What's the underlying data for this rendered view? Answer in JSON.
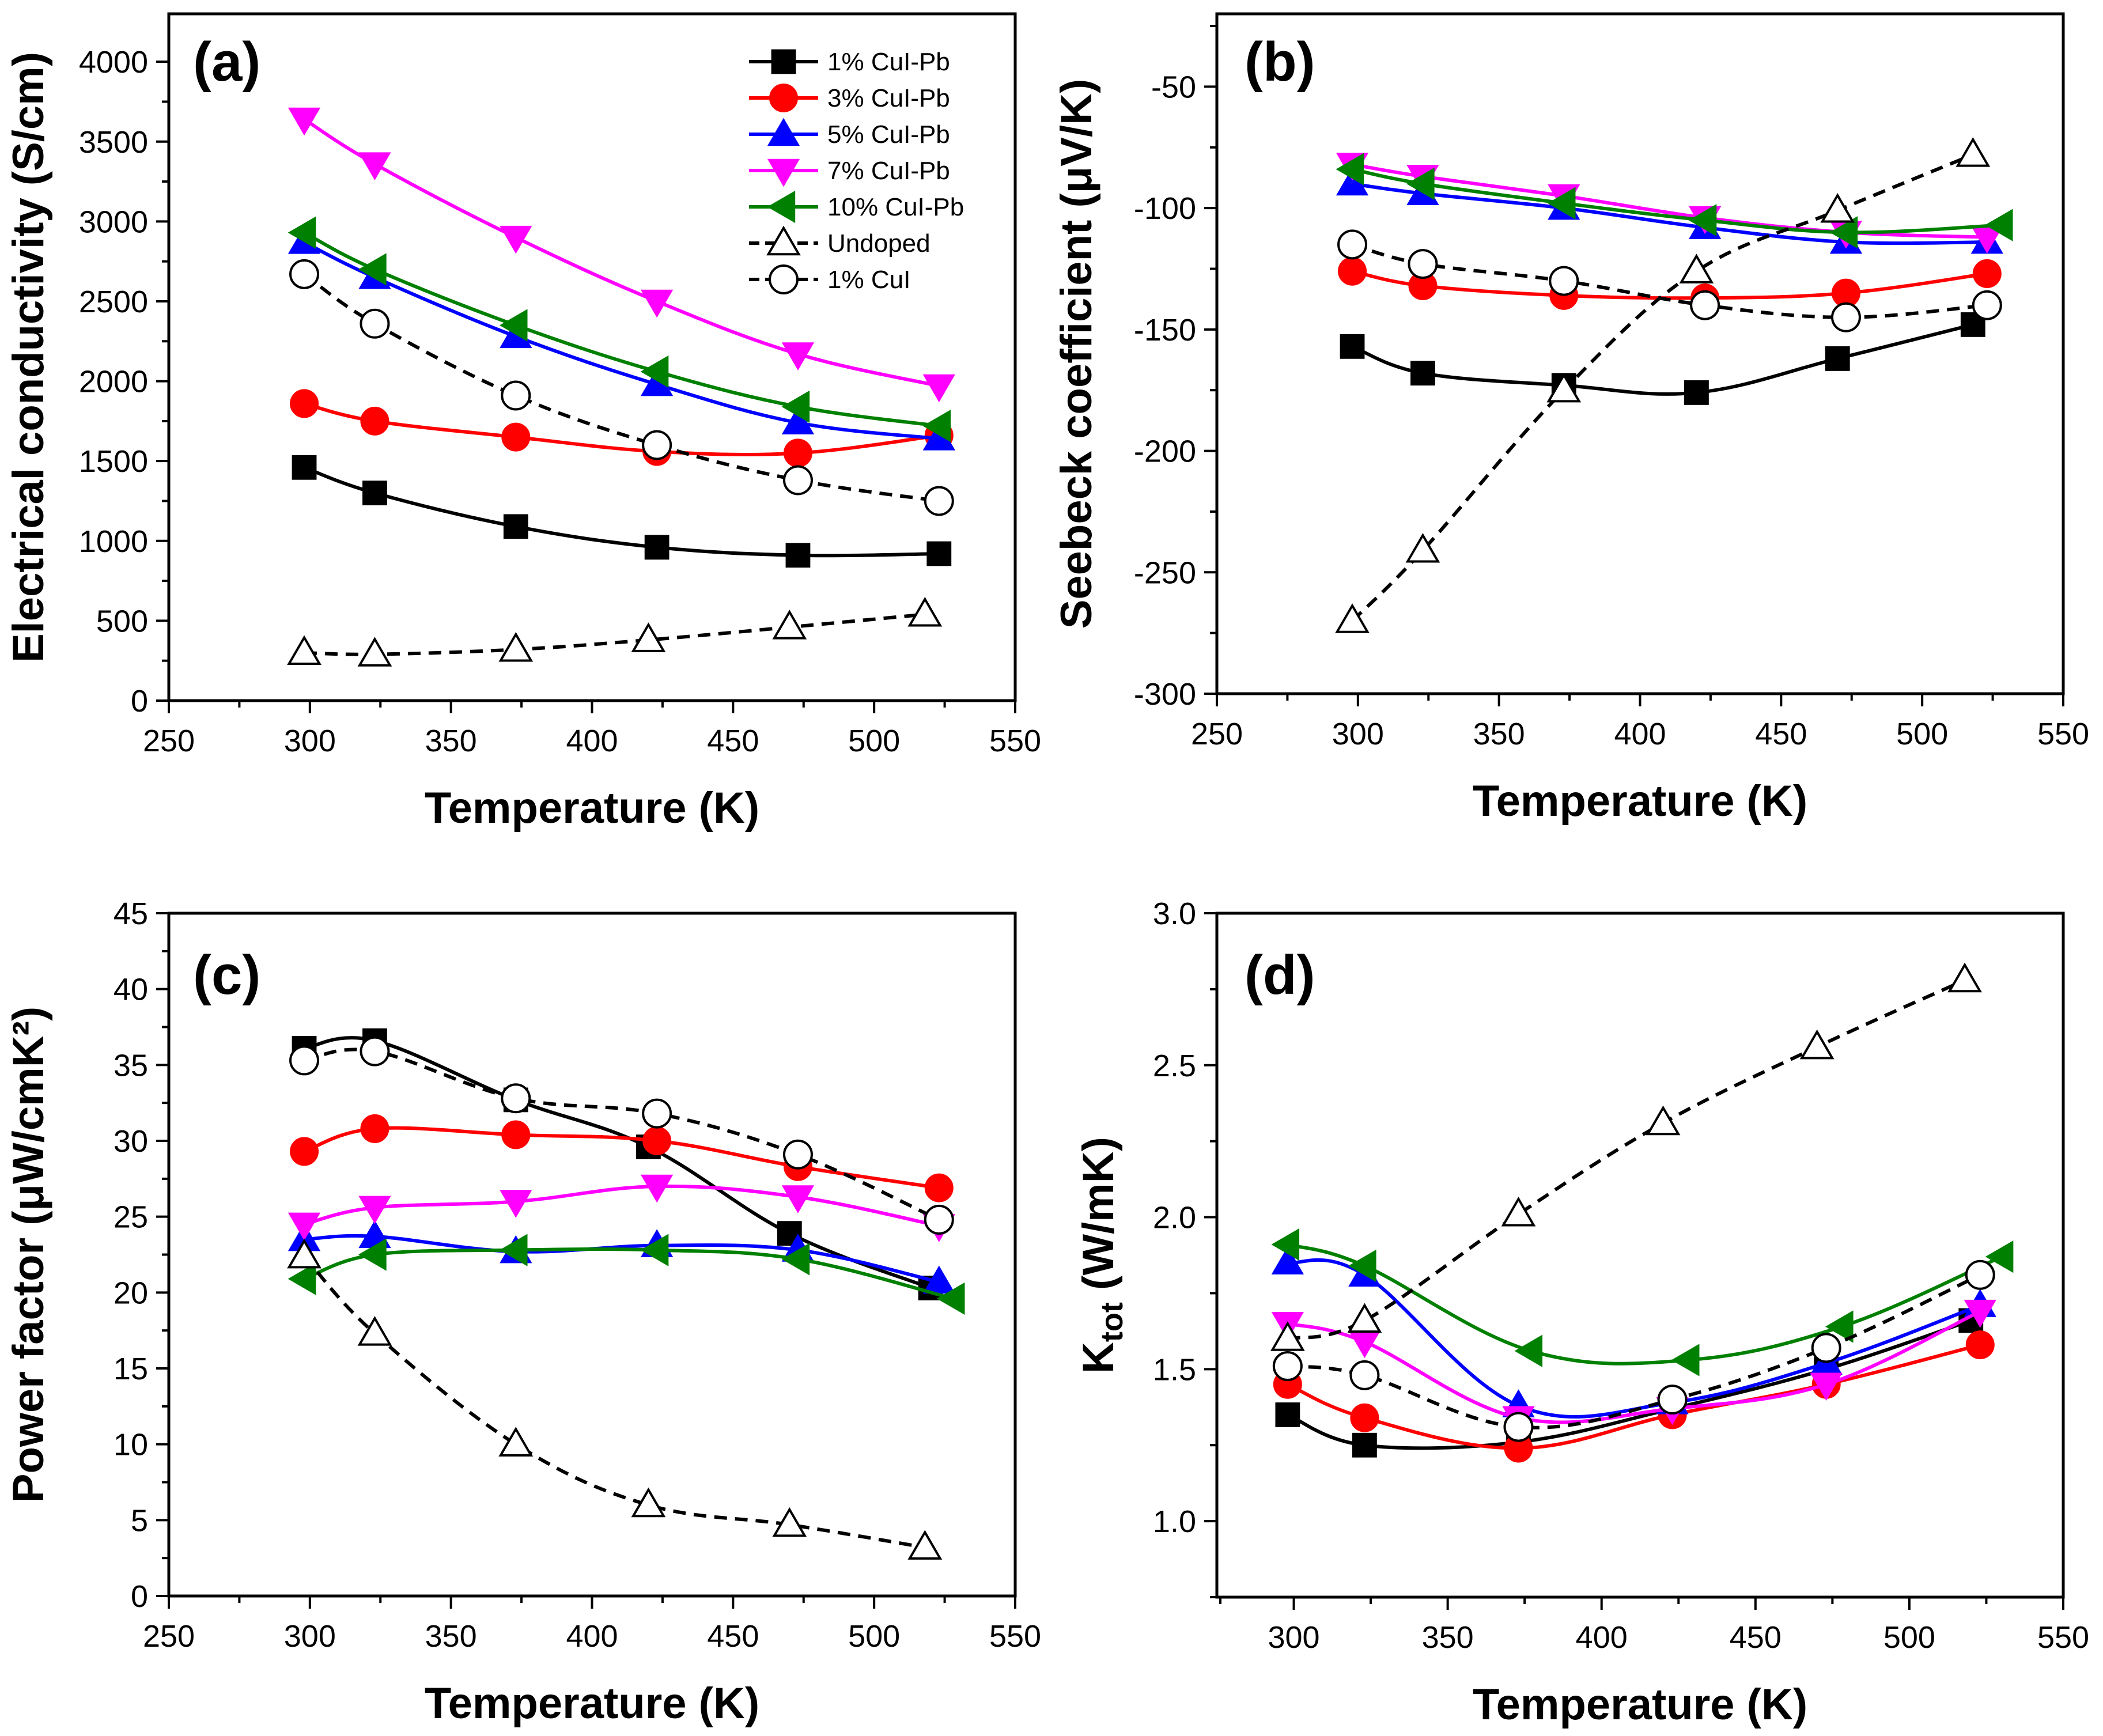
{
  "figure": {
    "description_panels": [
      "a",
      "b",
      "c",
      "d"
    ]
  },
  "legend": {
    "entries": [
      {
        "key": "cui1pb",
        "label": "1% CuI-Pb"
      },
      {
        "key": "cui3pb",
        "label": "3% CuI-Pb"
      },
      {
        "key": "cui5pb",
        "label": "5% CuI-Pb"
      },
      {
        "key": "cui7pb",
        "label": "7% CuI-Pb"
      },
      {
        "key": "cui10pb",
        "label": "10% CuI-Pb"
      },
      {
        "key": "undoped",
        "label": "Undoped"
      },
      {
        "key": "cui1",
        "label": "1% CuI"
      }
    ]
  },
  "series_style": {
    "cui1pb": {
      "color": "#000000",
      "marker": "square",
      "dash": false,
      "filled": true
    },
    "cui3pb": {
      "color": "#ff0000",
      "marker": "circle",
      "dash": false,
      "filled": true
    },
    "cui5pb": {
      "color": "#0000ff",
      "marker": "triangle-up",
      "dash": false,
      "filled": true
    },
    "cui7pb": {
      "color": "#ff00ff",
      "marker": "triangle-down",
      "dash": false,
      "filled": true
    },
    "cui10pb": {
      "color": "#008000",
      "marker": "triangle-left",
      "dash": false,
      "filled": true
    },
    "undoped": {
      "color": "#000000",
      "marker": "triangle-up",
      "dash": true,
      "filled": false
    },
    "cui1": {
      "color": "#000000",
      "marker": "circle",
      "dash": true,
      "filled": false
    }
  },
  "chart_data": [
    {
      "panel_label": "(a)",
      "type": "line",
      "title": "",
      "xlabel": "Temperature (K)",
      "ylabel": "Electrical conductivity (S/cm)",
      "xlim": [
        250,
        550
      ],
      "ylim": [
        0,
        4300
      ],
      "xticks": [
        250,
        300,
        350,
        400,
        450,
        500,
        550
      ],
      "yticks": [
        0,
        500,
        1000,
        1500,
        2000,
        2500,
        3000,
        3500,
        4000
      ],
      "legend_position": "top-right",
      "series": [
        {
          "key": "cui1pb",
          "name": "1% CuI-Pb",
          "x": [
            298,
            323,
            373,
            423,
            473,
            523
          ],
          "y": [
            1460,
            1300,
            1090,
            960,
            910,
            920
          ]
        },
        {
          "key": "cui3pb",
          "name": "3% CuI-Pb",
          "x": [
            298,
            323,
            373,
            423,
            473,
            523
          ],
          "y": [
            1860,
            1750,
            1650,
            1560,
            1550,
            1660
          ]
        },
        {
          "key": "cui5pb",
          "name": "5% CuI-Pb",
          "x": [
            298,
            323,
            373,
            423,
            473,
            523
          ],
          "y": [
            2870,
            2650,
            2280,
            1980,
            1740,
            1640
          ]
        },
        {
          "key": "cui7pb",
          "name": "7% CuI-Pb",
          "x": [
            298,
            323,
            373,
            423,
            473,
            523
          ],
          "y": [
            3640,
            3360,
            2900,
            2500,
            2170,
            1970
          ]
        },
        {
          "key": "cui10pb",
          "name": "10% CuI-Pb",
          "x": [
            298,
            323,
            373,
            423,
            473,
            523
          ],
          "y": [
            2930,
            2700,
            2350,
            2060,
            1840,
            1720
          ]
        },
        {
          "key": "undoped",
          "name": "Undoped",
          "x": [
            298,
            323,
            373,
            420,
            470,
            518
          ],
          "y": [
            300,
            290,
            320,
            380,
            460,
            540
          ]
        },
        {
          "key": "cui1",
          "name": "1% CuI",
          "x": [
            298,
            323,
            373,
            423,
            473,
            523
          ],
          "y": [
            2670,
            2360,
            1910,
            1600,
            1380,
            1250
          ]
        }
      ]
    },
    {
      "panel_label": "(b)",
      "type": "line",
      "title": "",
      "xlabel": "Temperature (K)",
      "ylabel": "Seebeck coefficient (μV/K)",
      "xlim": [
        250,
        550
      ],
      "ylim": [
        -300,
        -20
      ],
      "xticks": [
        250,
        300,
        350,
        400,
        450,
        500,
        550
      ],
      "yticks": [
        -300,
        -250,
        -200,
        -150,
        -100,
        -50
      ],
      "series": [
        {
          "key": "cui1pb",
          "name": "1% CuI-Pb",
          "x": [
            298,
            323,
            373,
            420,
            470,
            518
          ],
          "y": [
            -157,
            -168,
            -173,
            -176,
            -162,
            -148
          ]
        },
        {
          "key": "cui3pb",
          "name": "3% CuI-Pb",
          "x": [
            298,
            323,
            373,
            423,
            473,
            523
          ],
          "y": [
            -126,
            -132,
            -136,
            -137,
            -135,
            -127
          ]
        },
        {
          "key": "cui5pb",
          "name": "5% CuI-Pb",
          "x": [
            298,
            323,
            373,
            423,
            473,
            523
          ],
          "y": [
            -90,
            -94,
            -100,
            -108,
            -114,
            -114
          ]
        },
        {
          "key": "cui7pb",
          "name": "7% CuI-Pb",
          "x": [
            298,
            323,
            373,
            423,
            473,
            523
          ],
          "y": [
            -82,
            -87,
            -95,
            -104,
            -110,
            -112
          ]
        },
        {
          "key": "cui10pb",
          "name": "10% CuI-Pb",
          "x": [
            298,
            323,
            373,
            423,
            473,
            528
          ],
          "y": [
            -84,
            -90,
            -98,
            -105,
            -110,
            -107
          ]
        },
        {
          "key": "undoped",
          "name": "Undoped",
          "x": [
            298,
            323,
            373,
            420,
            470,
            518
          ],
          "y": [
            -270,
            -241,
            -175,
            -126,
            -101,
            -78
          ]
        },
        {
          "key": "cui1",
          "name": "1% CuI",
          "x": [
            298,
            323,
            373,
            423,
            473,
            523
          ],
          "y": [
            -115,
            -123,
            -130,
            -140,
            -145,
            -140
          ]
        }
      ]
    },
    {
      "panel_label": "(c)",
      "type": "line",
      "title": "",
      "xlabel": "Temperature (K)",
      "ylabel": "Power factor (μW/cmK²)",
      "xlim": [
        250,
        550
      ],
      "ylim": [
        0,
        45
      ],
      "xticks": [
        250,
        300,
        350,
        400,
        450,
        500,
        550
      ],
      "yticks": [
        0,
        5,
        10,
        15,
        20,
        25,
        30,
        35,
        40,
        45
      ],
      "series": [
        {
          "key": "cui1pb",
          "name": "1% CuI-Pb",
          "x": [
            298,
            323,
            373,
            420,
            470,
            520
          ],
          "y": [
            36.1,
            36.6,
            32.7,
            29.6,
            23.9,
            20.3
          ]
        },
        {
          "key": "cui3pb",
          "name": "3% CuI-Pb",
          "x": [
            298,
            323,
            373,
            423,
            473,
            523
          ],
          "y": [
            29.3,
            30.8,
            30.4,
            30.0,
            28.3,
            26.9
          ]
        },
        {
          "key": "cui5pb",
          "name": "5% CuI-Pb",
          "x": [
            298,
            323,
            373,
            423,
            473,
            523
          ],
          "y": [
            23.5,
            23.7,
            22.7,
            23.1,
            22.8,
            20.7
          ]
        },
        {
          "key": "cui7pb",
          "name": "7% CuI-Pb",
          "x": [
            298,
            323,
            373,
            423,
            473,
            523
          ],
          "y": [
            24.5,
            25.6,
            26.0,
            27.0,
            26.3,
            24.4
          ]
        },
        {
          "key": "cui10pb",
          "name": "10% CuI-Pb",
          "x": [
            298,
            323,
            373,
            423,
            473,
            528
          ],
          "y": [
            20.9,
            22.5,
            22.8,
            22.8,
            22.2,
            19.6
          ]
        },
        {
          "key": "undoped",
          "name": "Undoped",
          "x": [
            298,
            323,
            373,
            420,
            470,
            518
          ],
          "y": [
            22.4,
            17.3,
            10.0,
            6.0,
            4.7,
            3.2
          ]
        },
        {
          "key": "cui1",
          "name": "1% CuI",
          "x": [
            298,
            323,
            373,
            423,
            473,
            523
          ],
          "y": [
            35.3,
            35.9,
            32.8,
            31.8,
            29.1,
            24.8
          ]
        }
      ]
    },
    {
      "panel_label": "(d)",
      "type": "line",
      "title": "",
      "xlabel": "Temperature (K)",
      "ylabel_main": "K",
      "ylabel_sub": "tot",
      "ylabel_rest": " (W/mK)",
      "xlim": [
        275,
        550
      ],
      "ylim": [
        0.75,
        3.0
      ],
      "xticks": [
        300,
        350,
        400,
        450,
        500,
        550
      ],
      "yticks": [
        1.0,
        1.5,
        2.0,
        2.5,
        3.0
      ],
      "ytick_labels": [
        "1.0",
        "1.5",
        "2.0",
        "2.5",
        "3.0"
      ],
      "series": [
        {
          "key": "cui1pb",
          "name": "1% CuI-Pb",
          "x": [
            298,
            323,
            373,
            423,
            473,
            520
          ],
          "y": [
            1.35,
            1.25,
            1.26,
            1.37,
            1.5,
            1.66
          ]
        },
        {
          "key": "cui3pb",
          "name": "3% CuI-Pb",
          "x": [
            298,
            323,
            373,
            423,
            473,
            523
          ],
          "y": [
            1.45,
            1.34,
            1.24,
            1.35,
            1.45,
            1.58
          ]
        },
        {
          "key": "cui5pb",
          "name": "5% CuI-Pb",
          "x": [
            298,
            323,
            373,
            423,
            473,
            523
          ],
          "y": [
            1.85,
            1.81,
            1.38,
            1.39,
            1.52,
            1.71
          ]
        },
        {
          "key": "cui7pb",
          "name": "7% CuI-Pb",
          "x": [
            298,
            323,
            373,
            423,
            473,
            523
          ],
          "y": [
            1.65,
            1.59,
            1.34,
            1.37,
            1.45,
            1.69
          ]
        },
        {
          "key": "cui10pb",
          "name": "10% CuI-Pb",
          "x": [
            298,
            323,
            377,
            428,
            478,
            530
          ],
          "y": [
            1.91,
            1.84,
            1.56,
            1.53,
            1.64,
            1.87
          ]
        },
        {
          "key": "undoped",
          "name": "Undoped",
          "x": [
            298,
            323,
            373,
            420,
            470,
            518
          ],
          "y": [
            1.6,
            1.66,
            2.01,
            2.31,
            2.56,
            2.78
          ]
        },
        {
          "key": "cui1",
          "name": "1% CuI",
          "x": [
            298,
            323,
            373,
            423,
            473,
            523
          ],
          "y": [
            1.51,
            1.48,
            1.31,
            1.4,
            1.57,
            1.81
          ]
        }
      ]
    }
  ]
}
